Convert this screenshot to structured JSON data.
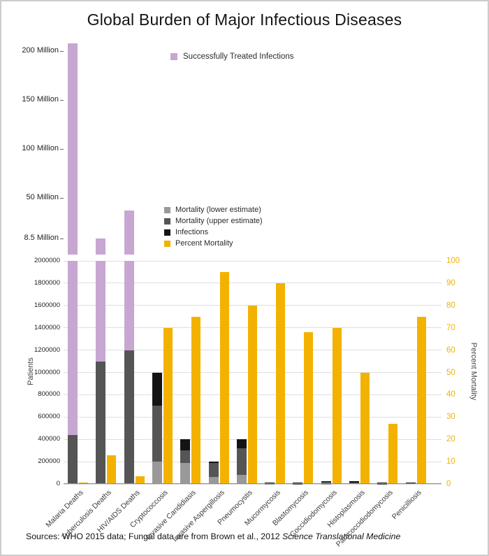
{
  "title": "Global Burden of Major Infectious Diseases",
  "legend_top": {
    "label": "Successfully Treated Infections"
  },
  "legend_main": [
    {
      "key": "mortality_lower",
      "label": "Mortality (lower estimate)"
    },
    {
      "key": "mortality_upper",
      "label": "Mortality (upper estimate)"
    },
    {
      "key": "infections",
      "label": "Infections"
    },
    {
      "key": "percent",
      "label": "Percent Mortality"
    }
  ],
  "colors": {
    "treated": "#c7a7d1",
    "mortality_lower": "#999999",
    "mortality_upper": "#555555",
    "infections": "#141414",
    "percent": "#f3b200",
    "grid": "#dedede"
  },
  "axes": {
    "left_label": "Patients",
    "right_label": "Percent Mortality",
    "upper_ticks": [
      {
        "label": "200 Million",
        "value": 200
      },
      {
        "label": "150 Million",
        "value": 150
      },
      {
        "label": "100 Million",
        "value": 100
      },
      {
        "label": "50 Million",
        "value": 50
      },
      {
        "label": "8.5 Million",
        "value": 8.5
      }
    ],
    "main_ticks": [
      "2000000",
      "1800000",
      "1600000",
      "1400000",
      "1200000",
      "1000000",
      "800000",
      "600000",
      "400000",
      "200000",
      "0"
    ],
    "right_ticks": [
      "100",
      "90",
      "80",
      "70",
      "60",
      "50",
      "40",
      "30",
      "20",
      "10",
      "0"
    ],
    "left_range": [
      0,
      2000000
    ],
    "right_range": [
      0,
      100
    ]
  },
  "source_note": {
    "prefix": "Sources: WHO 2015 data; Fungal data are from Brown et al., 2012 ",
    "italic": "Science Translational Medicine"
  },
  "chart_data": {
    "type": "bar",
    "title": "Global Burden of Major Infectious Diseases",
    "xlabel": "",
    "ylabel_left": "Patients",
    "ylabel_right": "Percent Mortality",
    "ylim_left": [
      0,
      2000000
    ],
    "ylim_right": [
      0,
      100
    ],
    "broken_axis_upper_scale": "8.5 Million to 200+ Million (Successfully Treated Infections)",
    "grid": true,
    "legend_position": "inside-top",
    "categories": [
      "Malaria Deaths",
      "Tuberculosis Deaths",
      "HIV/AIDS Deaths",
      "Cryptococcosis",
      "Invasive Candidiasis",
      "Invasive Aspergillosis",
      "Pneumocystis",
      "Mucormycosis",
      "Blastomycosis",
      "Coccidiodomycosis",
      "Histoplasmosis",
      "Paracoccidiodomycosis",
      "Penicilliosis"
    ],
    "bars": [
      {
        "label": "Malaria Deaths",
        "mortality_lower": 438000,
        "mortality_upper": 438000,
        "infections": 438000,
        "treated_millions": 214,
        "percent_mortality": 0.3
      },
      {
        "label": "Tuberculosis Deaths",
        "mortality_lower": 1100000,
        "mortality_upper": 1100000,
        "infections": 1100000,
        "treated_millions": 8.5,
        "percent_mortality": 13
      },
      {
        "label": "HIV/AIDS Deaths",
        "mortality_lower": 1200000,
        "mortality_upper": 1200000,
        "infections": 1200000,
        "treated_millions": 37,
        "percent_mortality": 3.5
      },
      {
        "label": "Cryptococcosis",
        "mortality_lower": 200000,
        "mortality_upper": 700000,
        "infections": 1000000,
        "treated_millions": null,
        "percent_mortality": 70
      },
      {
        "label": "Invasive Candidiasis",
        "mortality_lower": 190000,
        "mortality_upper": 300000,
        "infections": 400000,
        "treated_millions": null,
        "percent_mortality": 75
      },
      {
        "label": "Invasive Aspergillosis",
        "mortality_lower": 60000,
        "mortality_upper": 190000,
        "infections": 200000,
        "treated_millions": null,
        "percent_mortality": 95
      },
      {
        "label": "Pneumocystis",
        "mortality_lower": 80000,
        "mortality_upper": 320000,
        "infections": 400000,
        "treated_millions": null,
        "percent_mortality": 80
      },
      {
        "label": "Mucormycosis",
        "mortality_lower": 3000,
        "mortality_upper": 9000,
        "infections": 10000,
        "treated_millions": null,
        "percent_mortality": 90
      },
      {
        "label": "Blastomycosis",
        "mortality_lower": 1000,
        "mortality_upper": 2000,
        "infections": 3000,
        "treated_millions": null,
        "percent_mortality": 68
      },
      {
        "label": "Coccidiodomycosis",
        "mortality_lower": 2000,
        "mortality_upper": 17500,
        "infections": 25000,
        "treated_millions": null,
        "percent_mortality": 70
      },
      {
        "label": "Histoplasmosis",
        "mortality_lower": 6000,
        "mortality_upper": 12500,
        "infections": 25000,
        "treated_millions": null,
        "percent_mortality": 50
      },
      {
        "label": "Paracoccidiodomycosis",
        "mortality_lower": 200,
        "mortality_upper": 1000,
        "infections": 4000,
        "treated_millions": null,
        "percent_mortality": 27
      },
      {
        "label": "Penicilliosis",
        "mortality_lower": 200,
        "mortality_upper": 6000,
        "infections": 8000,
        "treated_millions": null,
        "percent_mortality": 75
      }
    ]
  }
}
